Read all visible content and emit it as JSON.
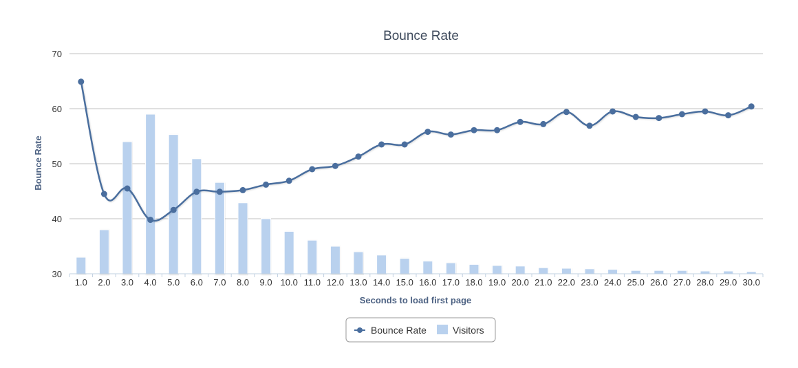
{
  "chart_data": {
    "type": "bar+line",
    "title": "Bounce Rate",
    "xlabel": "Seconds to load first page",
    "ylabel": "Bounce Rate",
    "ylim": [
      30,
      70
    ],
    "y_ticks": [
      "30",
      "40",
      "50",
      "60",
      "70"
    ],
    "grid": true,
    "legend_position": "bottom-center",
    "categories": [
      "1.0",
      "2.0",
      "3.0",
      "4.0",
      "5.0",
      "6.0",
      "7.0",
      "8.0",
      "9.0",
      "10.0",
      "11.0",
      "12.0",
      "13.0",
      "14.0",
      "15.0",
      "16.0",
      "17.0",
      "18.0",
      "19.0",
      "20.0",
      "21.0",
      "22.0",
      "23.0",
      "24.0",
      "25.0",
      "26.0",
      "27.0",
      "28.0",
      "29.0",
      "30.0"
    ],
    "series": [
      {
        "name": "Bounce Rate",
        "kind": "line",
        "color": "#4a6e9e",
        "values": [
          64.9,
          44.5,
          45.5,
          39.8,
          41.6,
          44.9,
          44.9,
          45.2,
          46.2,
          46.9,
          49.0,
          49.6,
          51.3,
          53.5,
          53.5,
          55.8,
          55.3,
          56.1,
          56.1,
          57.6,
          57.2,
          59.4,
          56.9,
          59.5,
          58.5,
          58.3,
          59.0,
          59.5,
          58.8,
          60.4
        ]
      },
      {
        "name": "Visitors",
        "kind": "bar",
        "color": "#b9d1ee",
        "values": [
          33,
          38,
          54,
          59,
          55.3,
          50.9,
          46.6,
          42.9,
          40.0,
          37.7,
          36.1,
          35.0,
          34.0,
          33.4,
          32.8,
          32.3,
          32.0,
          31.7,
          31.5,
          31.4,
          31.1,
          31.0,
          30.9,
          30.8,
          30.6,
          30.6,
          30.6,
          30.5,
          30.5,
          30.4
        ]
      }
    ]
  }
}
